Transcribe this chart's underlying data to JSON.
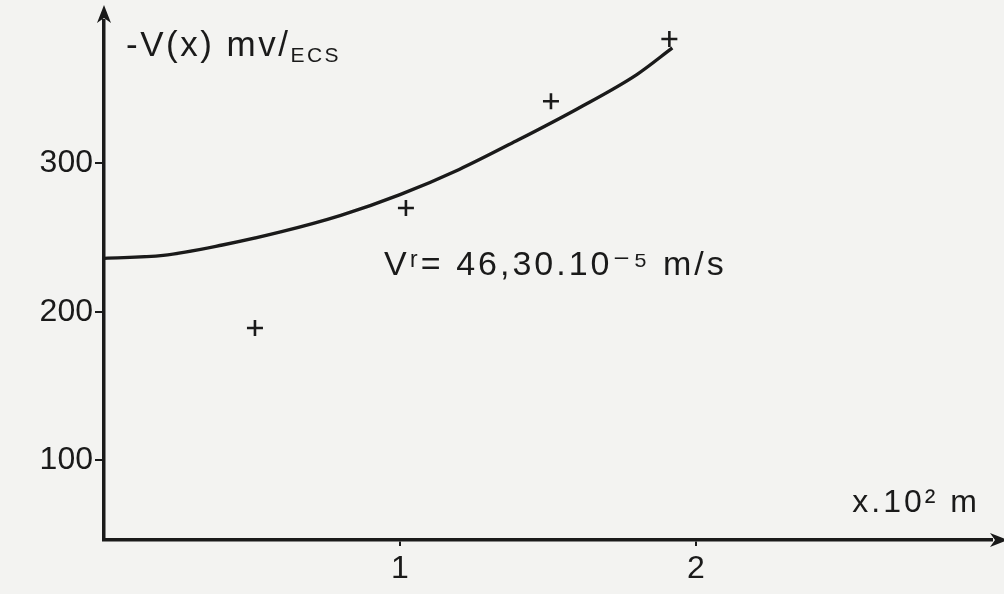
{
  "chart_data": {
    "type": "scatter",
    "xlabel": "x.10² m",
    "ylabel": "-V(x) mv/$_{ECS}$",
    "annotations": [
      "Vʳ= 46,30.10⁻⁵ m/s"
    ],
    "series": [
      {
        "color": "#1a1a1a",
        "marker": "cross",
        "x": [
          0.51,
          1.02,
          1.51,
          1.91
        ],
        "values": [
          189,
          270,
          342,
          384
        ]
      },
      {
        "type": "line",
        "color": "#1a1a1a",
        "marker": "none",
        "line_style": "solid",
        "x": [
          0,
          0.2,
          0.4,
          0.6,
          0.8,
          1.0,
          1.2,
          1.4,
          1.6,
          1.8,
          1.92
        ],
        "values": [
          236,
          238,
          245,
          254,
          265,
          279,
          296,
          316,
          337,
          360,
          378
        ]
      }
    ],
    "xlim": [
      0,
      3
    ],
    "xticks": [
      1,
      2
    ],
    "ylim": [
      46,
      396
    ],
    "yticks": [
      100,
      200,
      300
    ],
    "grid": false,
    "legend": false
  }
}
